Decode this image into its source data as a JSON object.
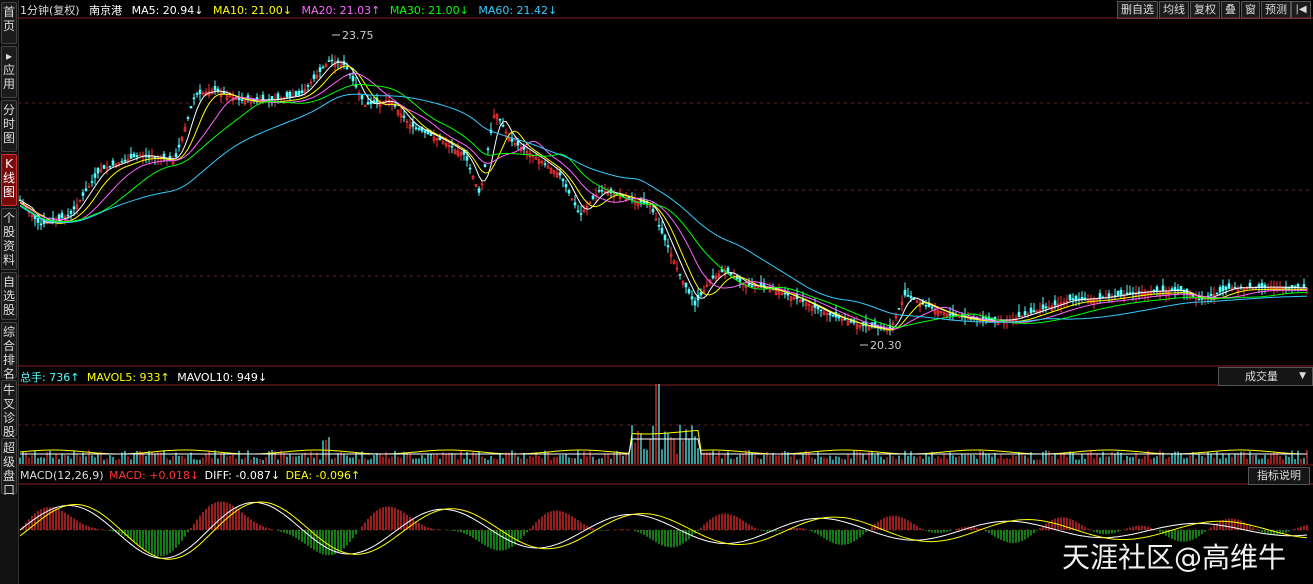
{
  "sidebar": {
    "tabs": [
      {
        "label": "首页",
        "active": false
      },
      {
        "label": "▸应用",
        "active": false
      },
      {
        "label": "分时图",
        "active": false
      },
      {
        "label": "K线图",
        "active": true
      },
      {
        "label": "个股资料",
        "active": false
      },
      {
        "label": "自选股",
        "active": false
      },
      {
        "label": "综合排名",
        "active": false
      },
      {
        "label": "牛叉诊股",
        "active": false
      },
      {
        "label": "超级盘口",
        "active": false
      }
    ]
  },
  "header": {
    "period": "1分钟(复权)",
    "stock": "南京港",
    "ma5": "MA5: 20.94↓",
    "ma10": "MA10: 21.00↓",
    "ma20": "MA20: 21.03↑",
    "ma30": "MA30: 21.00↓",
    "ma60": "MA60: 21.42↓",
    "buttons": [
      "删自选",
      "均线",
      "复权",
      "叠",
      "窗",
      "预测"
    ],
    "scroll_icon": "|◀"
  },
  "price_panel": {
    "high_label": "23.75",
    "low_label": "20.30"
  },
  "volume_panel": {
    "total": "总手: 736↑",
    "mavol5": "MAVOL5: 933↑",
    "mavol10": "MAVOL10: 949↓",
    "selector": "成交量"
  },
  "macd_panel": {
    "title": "MACD(12,26,9)",
    "macd": "MACD: +0.018↓",
    "diff": "DIFF: -0.087↓",
    "dea": "DEA: -0.096↑",
    "help_button": "指标说明"
  },
  "watermark": "天涯社区@高维牛",
  "colors": {
    "ma5": "#ffffff",
    "ma10": "#ffff00",
    "ma20": "#ff66ff",
    "ma30": "#00ff00",
    "ma60": "#33ccff",
    "up": "#ff3333",
    "down": "#55ffff",
    "dea": "#ffff00"
  }
}
